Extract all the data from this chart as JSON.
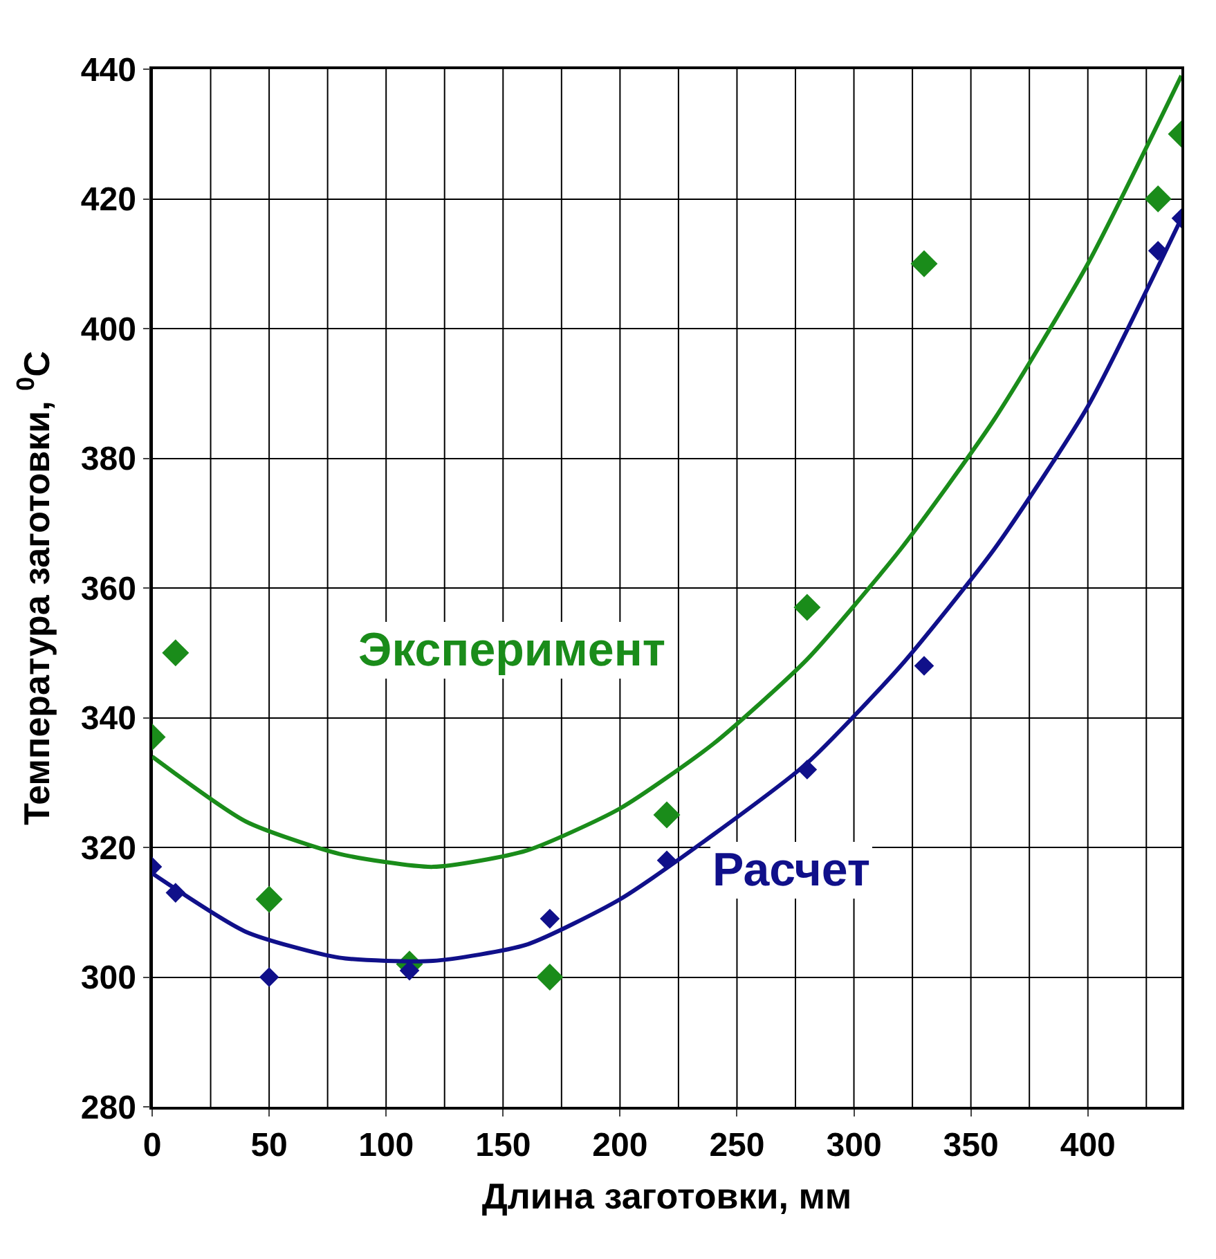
{
  "chart_data": {
    "type": "scatter",
    "xlabel": "Длина заготовки, мм",
    "ylabel": "Температура заготовки, $^{0}$C",
    "xlim": [
      0,
      440
    ],
    "xticks": [
      0,
      50,
      100,
      150,
      200,
      250,
      300,
      350,
      400
    ],
    "ylim": [
      280,
      440
    ],
    "yticks": [
      280,
      300,
      320,
      340,
      360,
      380,
      400,
      420,
      440
    ],
    "grid": true,
    "marker": "diamond",
    "series": [
      {
        "name": "Эксперимент",
        "color": "#1a8c1a",
        "x": [
          0,
          10,
          50,
          110,
          170,
          220,
          280,
          330,
          430,
          440
        ],
        "values": [
          337,
          350,
          312,
          302,
          300,
          325,
          357,
          410,
          420,
          430
        ]
      },
      {
        "name": "Расчет",
        "color": "#10108a",
        "x": [
          0,
          10,
          50,
          110,
          170,
          220,
          280,
          330,
          430,
          440
        ],
        "values": [
          317,
          313,
          300,
          301,
          309,
          318,
          332,
          348,
          412,
          417
        ]
      },
      {
        "type": "line",
        "color": "#1a8c1a",
        "marker": "none",
        "x": [
          0,
          40,
          80,
          120,
          160,
          200,
          240,
          280,
          320,
          360,
          400,
          440
        ],
        "values": [
          334,
          324,
          319,
          317,
          319.5,
          326,
          336,
          349,
          366,
          386,
          410,
          439
        ]
      },
      {
        "type": "line",
        "color": "#10108a",
        "marker": "none",
        "x": [
          0,
          40,
          80,
          120,
          160,
          200,
          240,
          280,
          320,
          360,
          400,
          440
        ],
        "values": [
          316,
          307,
          303,
          302.5,
          305,
          312,
          322,
          333,
          348,
          366,
          388,
          417
        ]
      }
    ]
  }
}
